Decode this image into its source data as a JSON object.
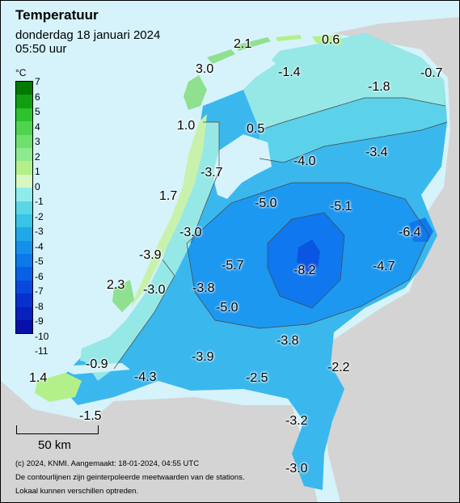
{
  "header": {
    "title": "Temperatuur",
    "subtitle": "donderdag 18 januari 2024",
    "time": "05:50 uur"
  },
  "legend": {
    "unit": "°C",
    "labels": [
      "7",
      "6",
      "5",
      "4",
      "3",
      "2",
      "1",
      "0",
      "-1",
      "-2",
      "-3",
      "-4",
      "-5",
      "-6",
      "-7",
      "-8",
      "-9",
      "-10",
      "-11"
    ],
    "colors": [
      "#007a00",
      "#129e12",
      "#2ec22e",
      "#4fd44f",
      "#6fdf6f",
      "#8fe98f",
      "#b3f08a",
      "#d8f7c0",
      "#8fecec",
      "#5ad6e4",
      "#39c3e6",
      "#20a8e8",
      "#1490ec",
      "#0c78ea",
      "#0860e6",
      "#0848dc",
      "#0830cc",
      "#0820bc",
      "#0810aa"
    ]
  },
  "map": {
    "colors": {
      "sea": "#d6f3fb",
      "land_neighbor": "#d4d4d4",
      "warm": "#8fe08f",
      "mild": "#c8f2ac",
      "cool": "#96e8e6",
      "cold1": "#5cd2ea",
      "cold2": "#3ab8ee",
      "cold3": "#1c98f0",
      "cold4": "#0f78ee",
      "cold5": "#0a55e2"
    },
    "values": [
      {
        "id": "schiermonnikoog",
        "text": "0.6"
      },
      {
        "id": "terschelling",
        "text": "2.1"
      },
      {
        "id": "vlieland",
        "text": "3.0"
      },
      {
        "id": "groningen",
        "text": "-1.4"
      },
      {
        "id": "nieuw-beerta",
        "text": "-0.7"
      },
      {
        "id": "eelde",
        "text": "-1.8"
      },
      {
        "id": "de-kooy",
        "text": "1.0"
      },
      {
        "id": "stavoren",
        "text": "0.5"
      },
      {
        "id": "lelystad",
        "text": "-4.0"
      },
      {
        "id": "hoogeveen",
        "text": "-3.4"
      },
      {
        "id": "berkhout",
        "text": "-3.7"
      },
      {
        "id": "ijmuiden",
        "text": "1.7"
      },
      {
        "id": "marknesse",
        "text": "-5.0"
      },
      {
        "id": "heino",
        "text": "-5.1"
      },
      {
        "id": "twenthe",
        "text": "-6.4"
      },
      {
        "id": "schiphol",
        "text": "-3.0"
      },
      {
        "id": "valkenburg",
        "text": "-3.9"
      },
      {
        "id": "de-bilt",
        "text": "-5.7"
      },
      {
        "id": "deelen",
        "text": "-8.2"
      },
      {
        "id": "hupsel",
        "text": "-4.7"
      },
      {
        "id": "hoek-van-holland",
        "text": "2.3"
      },
      {
        "id": "rotterdam",
        "text": "-3.0"
      },
      {
        "id": "cabauw",
        "text": "-3.8"
      },
      {
        "id": "herwijnen",
        "text": "-5.0"
      },
      {
        "id": "volkel",
        "text": "-3.8"
      },
      {
        "id": "gilze-rijen",
        "text": "-3.9"
      },
      {
        "id": "wilhelminadorp",
        "text": "-0.9"
      },
      {
        "id": "vlissingen",
        "text": "1.4"
      },
      {
        "id": "woensdrecht",
        "text": "-4.3"
      },
      {
        "id": "eindhoven",
        "text": "-2.5"
      },
      {
        "id": "arcen",
        "text": "-2.2"
      },
      {
        "id": "westdorpe",
        "text": "-1.5"
      },
      {
        "id": "ell",
        "text": "-3.2"
      },
      {
        "id": "maastricht",
        "text": "-3.0"
      }
    ]
  },
  "scale": {
    "label": "50 km"
  },
  "footer": {
    "line1": "(c) 2024, KNMI. Aangemaakt: 18-01-2024, 04:55 UTC",
    "line2": "De contourlijnen zijn geinterpoleerde meetwaarden van de stations.",
    "line3": "Lokaal kunnen verschillen optreden."
  }
}
